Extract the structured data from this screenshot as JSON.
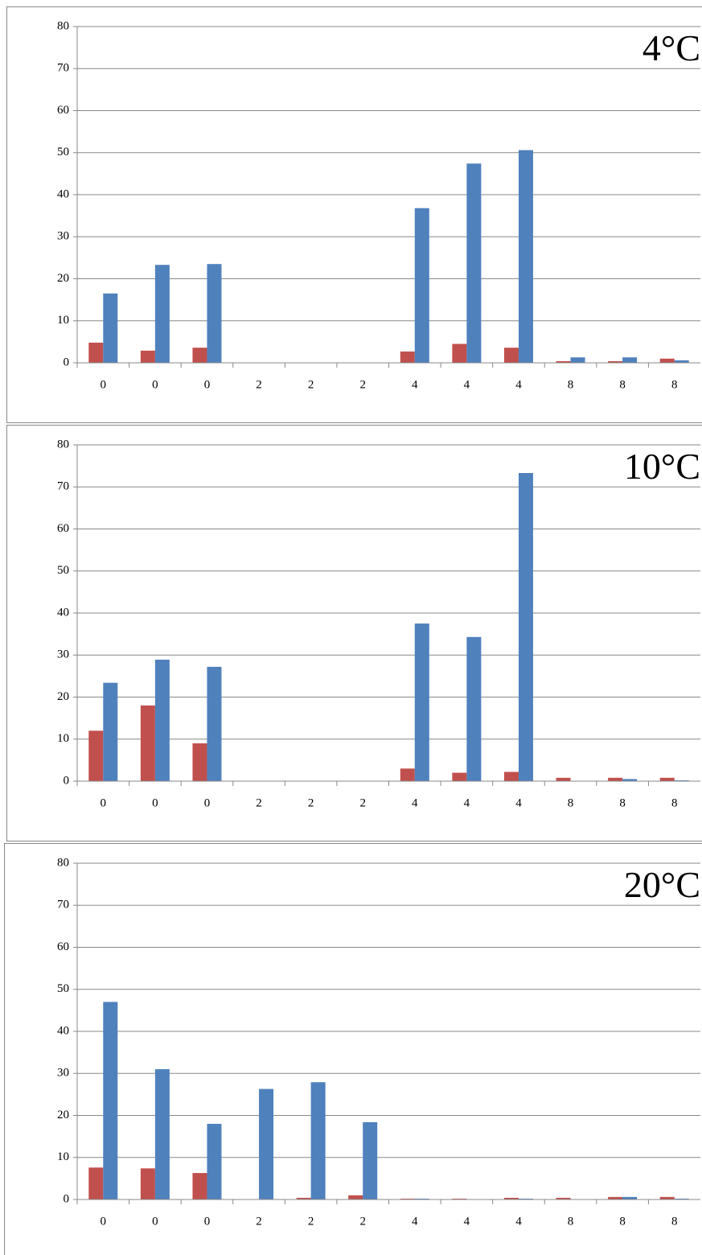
{
  "chart_data": [
    {
      "type": "bar",
      "annotation": "4°C",
      "categories": [
        "0",
        "0",
        "0",
        "2",
        "2",
        "2",
        "4",
        "4",
        "4",
        "8",
        "8",
        "8"
      ],
      "series": [
        {
          "color": "#c0504d",
          "values": [
            4.8,
            2.9,
            3.6,
            0,
            0,
            0,
            2.7,
            4.5,
            3.6,
            0.4,
            0.4,
            1.0
          ]
        },
        {
          "color": "#4f81bd",
          "values": [
            16.5,
            23.3,
            23.5,
            0,
            0,
            0,
            36.8,
            47.4,
            50.6,
            1.3,
            1.3,
            0.6
          ]
        }
      ],
      "ylim": [
        0,
        80
      ],
      "yticks": [
        0,
        10,
        20,
        30,
        40,
        50,
        60,
        70,
        80
      ],
      "grid": true
    },
    {
      "type": "bar",
      "annotation": "10°C",
      "categories": [
        "0",
        "0",
        "0",
        "2",
        "2",
        "2",
        "4",
        "4",
        "4",
        "8",
        "8",
        "8"
      ],
      "series": [
        {
          "color": "#c0504d",
          "values": [
            12,
            18,
            9,
            0,
            0,
            0,
            3,
            2,
            2.2,
            0.8,
            0.8,
            0.8
          ]
        },
        {
          "color": "#4f81bd",
          "values": [
            23.4,
            28.9,
            27.2,
            0,
            0,
            0,
            37.5,
            34.3,
            73.3,
            0,
            0.5,
            0.2
          ]
        }
      ],
      "ylim": [
        0,
        80
      ],
      "yticks": [
        0,
        10,
        20,
        30,
        40,
        50,
        60,
        70,
        80
      ],
      "grid": true
    },
    {
      "type": "bar",
      "annotation": "20°C",
      "categories": [
        "0",
        "0",
        "0",
        "2",
        "2",
        "2",
        "4",
        "4",
        "4",
        "8",
        "8",
        "8"
      ],
      "series": [
        {
          "color": "#c0504d",
          "values": [
            7.6,
            7.4,
            6.3,
            0,
            0.4,
            1.0,
            0.2,
            0.2,
            0.4,
            0.4,
            0.6,
            0.6
          ]
        },
        {
          "color": "#4f81bd",
          "values": [
            47,
            31,
            18,
            26.3,
            27.9,
            18.4,
            0.2,
            0,
            0.2,
            0,
            0.6,
            0.2
          ]
        }
      ],
      "ylim": [
        0,
        80
      ],
      "yticks": [
        0,
        10,
        20,
        30,
        40,
        50,
        60,
        70,
        80
      ],
      "grid": true
    }
  ]
}
